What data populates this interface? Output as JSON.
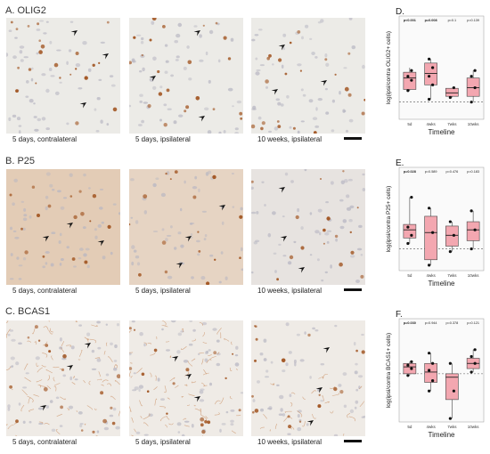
{
  "rows": [
    {
      "title": "A. OLIG2",
      "stain": "olig2",
      "bg": "#ecebe7",
      "captions": [
        "5 days, contralateral",
        "5 days, ipsilateral",
        "10 weeks, ipsilateral"
      ]
    },
    {
      "title": "B. P25",
      "stain": "p25",
      "bg": [
        "#e3ccb6",
        "#e6d4c3",
        "#e7e3e0"
      ],
      "captions": [
        "5 days, contralateral",
        "5 days, ipsilateral",
        "10 weeks, ipsilateral"
      ]
    },
    {
      "title": "C. BCAS1",
      "stain": "bcas1",
      "bg": "#efebe6",
      "captions": [
        "5 days, contralateral",
        "5 days, ipsilateral",
        "10 weeks, ipsilateral"
      ]
    }
  ],
  "colors": {
    "box_fill": "#f3a7b0",
    "box_stroke": "#444444",
    "point": "#111111",
    "brown": "#a0521e",
    "arrow": "#111111"
  },
  "chart_data": [
    {
      "panel_label": "D.",
      "type": "box",
      "ylabel": "log(ipsi/contra OLIG2+ cells)",
      "xlabel": "Timeline",
      "categories": [
        "5d",
        "4wks",
        "7wks",
        "10wks"
      ],
      "ylim": [
        -0.3,
        1.5
      ],
      "p_values": [
        "p<0.001",
        "p=0.008",
        "p=0.1",
        "p=0.139"
      ],
      "p_bold": [
        true,
        true,
        false,
        false
      ],
      "boxes": [
        {
          "q1": 0.22,
          "median": 0.42,
          "q3": 0.52,
          "whisker_low": 0.2,
          "whisker_high": 0.6,
          "points": [
            0.2,
            0.38,
            0.45,
            0.55
          ]
        },
        {
          "q1": 0.3,
          "median": 0.5,
          "q3": 0.68,
          "whisker_low": 0.05,
          "whisker_high": 0.75,
          "points": [
            0.05,
            0.3,
            0.45,
            0.6,
            0.75
          ]
        },
        {
          "q1": 0.1,
          "median": 0.16,
          "q3": 0.24,
          "whisker_low": 0.08,
          "whisker_high": 0.25,
          "points": [
            0.08,
            0.25
          ]
        },
        {
          "q1": 0.1,
          "median": 0.25,
          "q3": 0.42,
          "whisker_low": 0.0,
          "whisker_high": 0.55,
          "points": [
            0.0,
            0.25,
            0.45,
            0.55
          ]
        }
      ]
    },
    {
      "panel_label": "E.",
      "type": "box",
      "ylabel": "log(ipsi/contra P25+ cells)",
      "xlabel": "Timeline",
      "categories": [
        "5d",
        "4wks",
        "7wks",
        "10wks"
      ],
      "ylim": [
        -0.4,
        1.5
      ],
      "p_values": [
        "p=0.028",
        "p=0.589",
        "p=0.476",
        "p=0.183"
      ],
      "p_bold": [
        true,
        false,
        false,
        false
      ],
      "boxes": [
        {
          "q1": 0.2,
          "median": 0.35,
          "q3": 0.45,
          "whisker_low": 0.1,
          "whisker_high": 0.95,
          "points": [
            0.1,
            0.25,
            0.4,
            0.95
          ]
        },
        {
          "q1": -0.2,
          "median": 0.3,
          "q3": 0.6,
          "whisker_low": -0.3,
          "whisker_high": 0.75,
          "points": [
            -0.3,
            0.3,
            0.75
          ]
        },
        {
          "q1": 0.05,
          "median": 0.25,
          "q3": 0.42,
          "whisker_low": -0.05,
          "whisker_high": 0.5,
          "points": [
            -0.05,
            0.25,
            0.5
          ]
        },
        {
          "q1": 0.15,
          "median": 0.35,
          "q3": 0.5,
          "whisker_low": 0.0,
          "whisker_high": 0.7,
          "points": [
            0.0,
            0.35,
            0.7
          ]
        }
      ]
    },
    {
      "panel_label": "F.",
      "type": "box",
      "ylabel": "log(ipsi/contra BCAS1+ cells)",
      "xlabel": "Timeline",
      "categories": [
        "5d",
        "4wks",
        "7wks",
        "10wks"
      ],
      "ylim": [
        -1.4,
        1.6
      ],
      "p_values": [
        "p=0.030",
        "p=0.944",
        "p=0.378",
        "p=0.121"
      ],
      "p_bold": [
        true,
        false,
        false,
        false
      ],
      "boxes": [
        {
          "q1": 0.0,
          "median": 0.2,
          "q3": 0.3,
          "whisker_low": -0.05,
          "whisker_high": 0.35,
          "points": [
            -0.05,
            0.15,
            0.25,
            0.35
          ]
        },
        {
          "q1": -0.25,
          "median": 0.05,
          "q3": 0.3,
          "whisker_low": -0.5,
          "whisker_high": 0.6,
          "points": [
            -0.5,
            -0.2,
            0.1,
            0.3,
            0.6
          ]
        },
        {
          "q1": -0.75,
          "median": -0.1,
          "q3": 0.0,
          "whisker_low": -1.3,
          "whisker_high": 0.3,
          "points": [
            -1.3,
            -0.5,
            0.3
          ]
        },
        {
          "q1": 0.15,
          "median": 0.3,
          "q3": 0.45,
          "whisker_low": 0.05,
          "whisker_high": 0.7,
          "points": [
            0.05,
            0.3,
            0.5,
            0.7
          ]
        }
      ]
    }
  ]
}
